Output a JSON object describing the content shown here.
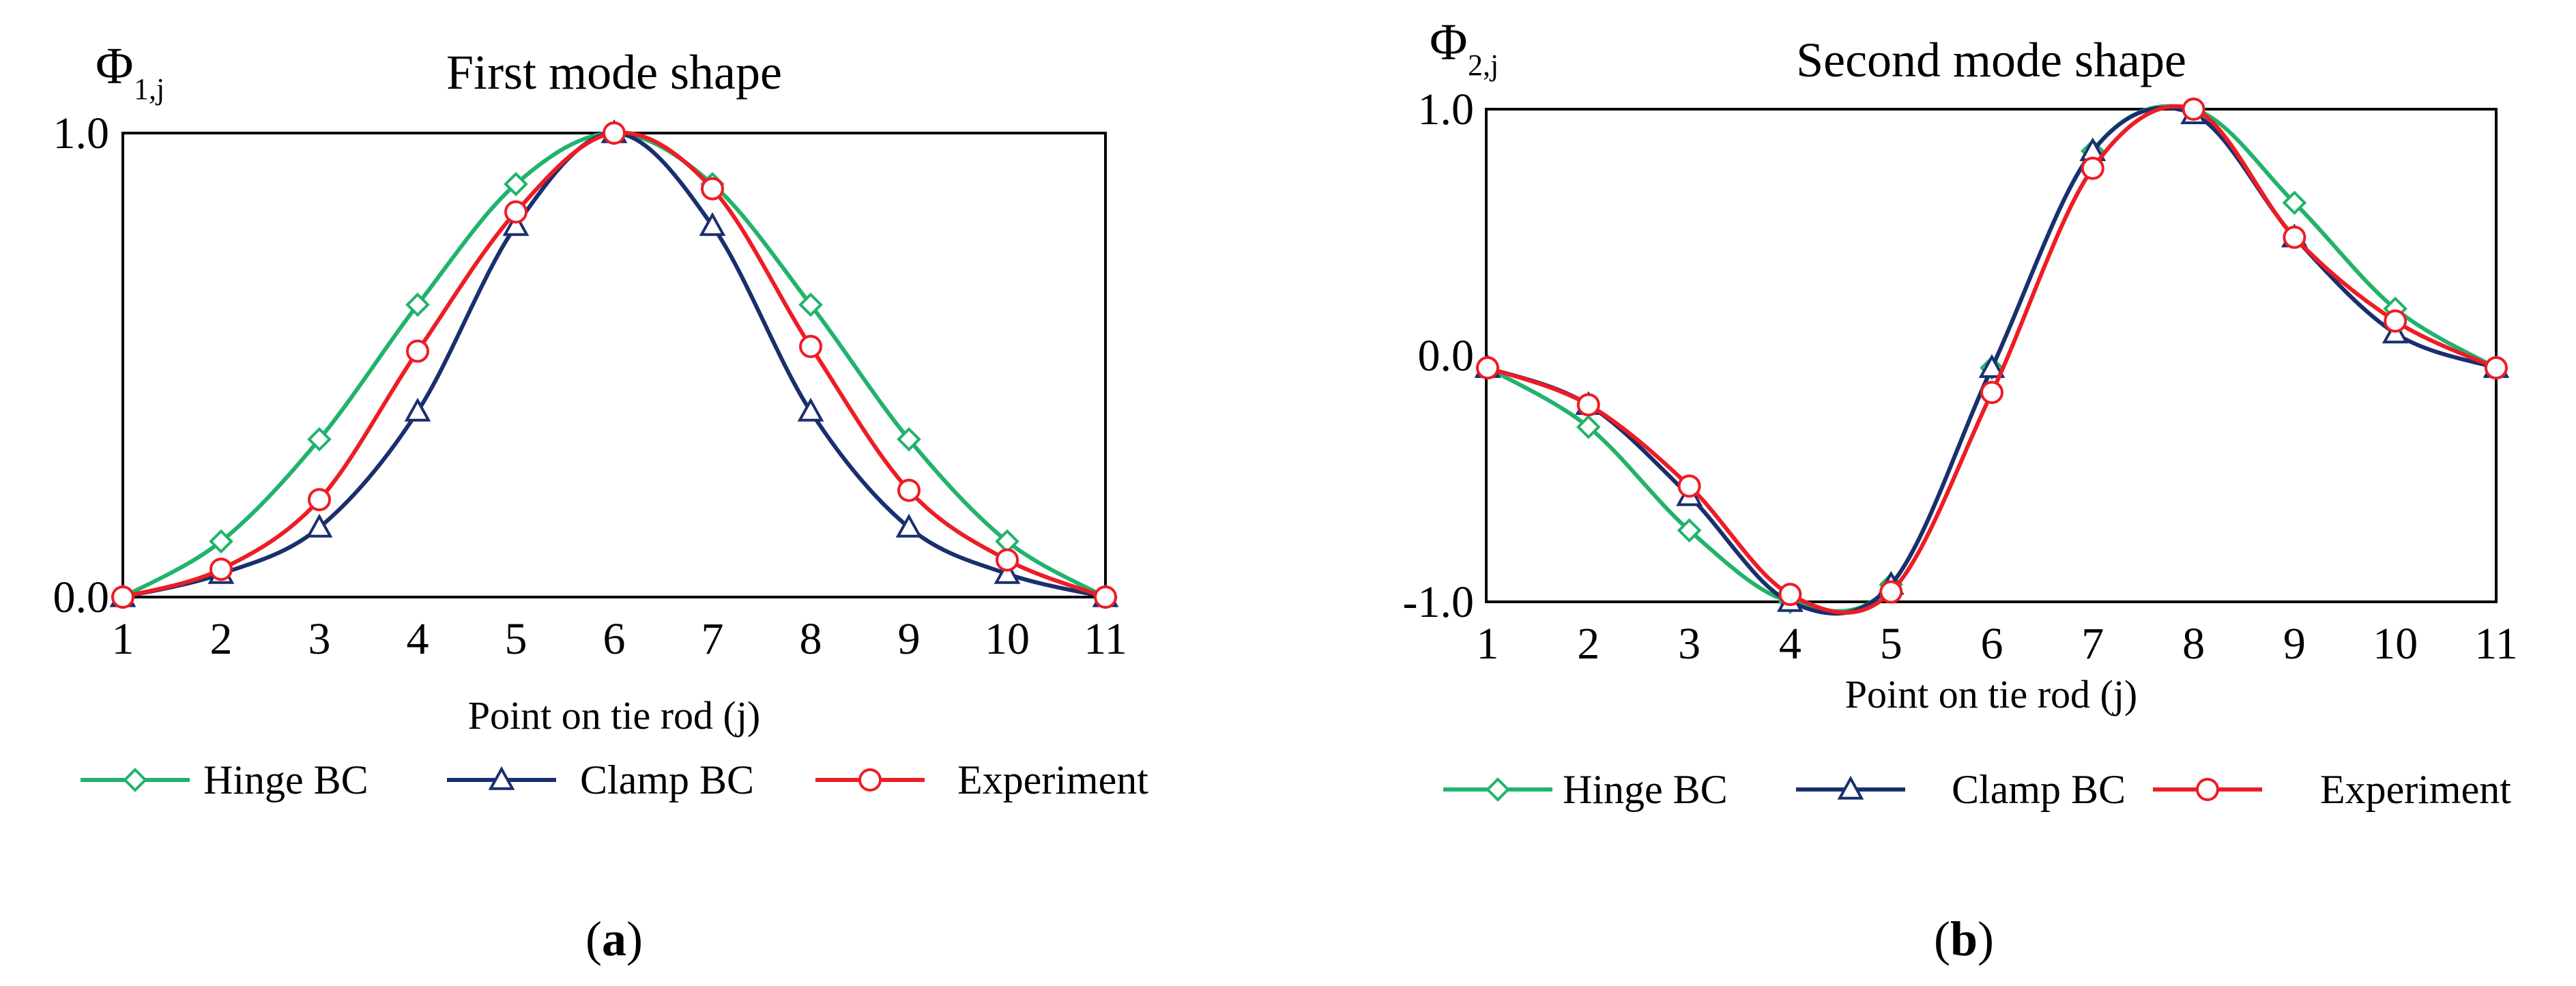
{
  "chart_data": [
    {
      "type": "line",
      "panel": "(a)",
      "panel_letter": "a",
      "title": "First mode shape",
      "ylabel_main": "Φ",
      "ylabel_sub": "1,j",
      "xlabel": "Point on tie rod (j)",
      "x": [
        1,
        2,
        3,
        4,
        5,
        6,
        7,
        8,
        9,
        10,
        11
      ],
      "xlim": [
        1,
        11
      ],
      "ylim": [
        0,
        1
      ],
      "y_ticks": [
        "0.0",
        "1.0"
      ],
      "x_ticks": [
        "1",
        "2",
        "3",
        "4",
        "5",
        "6",
        "7",
        "8",
        "9",
        "10",
        "11"
      ],
      "legend_position": "bottom",
      "series": [
        {
          "name": "Hinge BC",
          "color": "#21b36b",
          "marker": "diamond",
          "values": [
            0.0,
            0.12,
            0.34,
            0.63,
            0.89,
            1.0,
            0.89,
            0.63,
            0.34,
            0.12,
            0.0
          ]
        },
        {
          "name": "Clamp BC",
          "color": "#1a2f6e",
          "marker": "triangle",
          "values": [
            0.0,
            0.05,
            0.15,
            0.4,
            0.8,
            1.0,
            0.8,
            0.4,
            0.15,
            0.05,
            0.0
          ]
        },
        {
          "name": "Experiment",
          "color": "#ee1c24",
          "marker": "circle",
          "values": [
            0.0,
            0.06,
            0.21,
            0.53,
            0.83,
            1.0,
            0.88,
            0.54,
            0.23,
            0.08,
            0.0
          ]
        }
      ]
    },
    {
      "type": "line",
      "panel": "(b)",
      "panel_letter": "b",
      "title": "Second mode shape",
      "ylabel_main": "Φ",
      "ylabel_sub": "2,j",
      "xlabel": "Point on tie rod (j)",
      "x": [
        1,
        2,
        3,
        4,
        5,
        6,
        7,
        8,
        9,
        10,
        11
      ],
      "xlim": [
        1,
        11
      ],
      "ylim": [
        -1,
        1
      ],
      "y_ticks": [
        "-1.0",
        "0.0",
        "1.0"
      ],
      "x_ticks": [
        "1",
        "2",
        "3",
        "4",
        "5",
        "6",
        "7",
        "8",
        "9",
        "10",
        "11"
      ],
      "legend_position": "bottom",
      "series": [
        {
          "name": "Hinge BC",
          "color": "#21b36b",
          "marker": "diamond",
          "values": [
            -0.05,
            -0.29,
            -0.71,
            -1.0,
            -0.93,
            -0.05,
            0.83,
            1.0,
            0.62,
            0.19,
            -0.05
          ]
        },
        {
          "name": "Clamp BC",
          "color": "#1a2f6e",
          "marker": "triangle",
          "values": [
            -0.05,
            -0.2,
            -0.57,
            -1.0,
            -0.93,
            -0.05,
            0.83,
            0.98,
            0.48,
            0.09,
            -0.05
          ]
        },
        {
          "name": "Experiment",
          "color": "#ee1c24",
          "marker": "circle",
          "values": [
            -0.05,
            -0.2,
            -0.53,
            -0.97,
            -0.96,
            -0.15,
            0.76,
            1.0,
            0.48,
            0.14,
            -0.05
          ]
        }
      ]
    }
  ]
}
